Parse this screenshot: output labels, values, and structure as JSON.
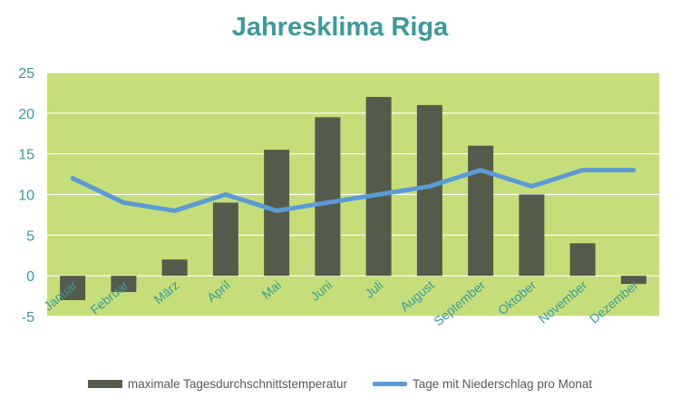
{
  "chart_data": {
    "type": "bar",
    "title": "Jahresklima Riga",
    "categories": [
      "Januar",
      "Februar",
      "März",
      "April",
      "Mai",
      "Juni",
      "Juli",
      "August",
      "September",
      "Oktober",
      "November",
      "Dezember"
    ],
    "series": [
      {
        "name": "maximale Tagesdurchschnittstemperatur",
        "type": "bar",
        "values": [
          -3,
          -2,
          2,
          9,
          15.5,
          19.5,
          22,
          21,
          16,
          10,
          4,
          -1
        ],
        "color": "#555b4a"
      },
      {
        "name": "Tage mit Niederschlag pro Monat",
        "type": "line",
        "values": [
          12,
          9,
          8,
          10,
          8,
          9,
          10,
          11,
          13,
          11,
          13,
          13
        ],
        "color": "#5b9bd5"
      }
    ],
    "ylim": [
      -5,
      25
    ],
    "yticks": [
      "-5",
      "0",
      "5",
      "10",
      "15",
      "20",
      "25"
    ],
    "grid": true,
    "plot_background": "#c5de7a",
    "text_color": "#3a9a9c",
    "legend_position": "bottom"
  }
}
